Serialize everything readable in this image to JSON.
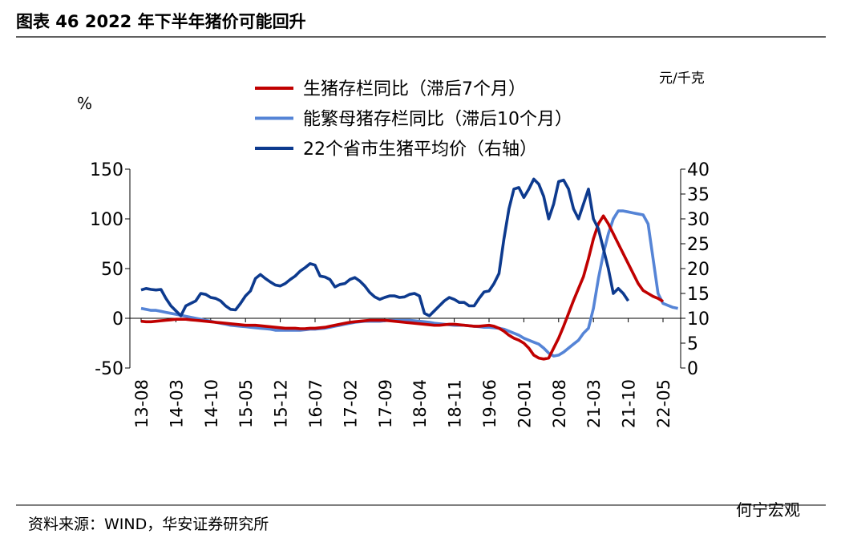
{
  "title": "图表 46 2022 年下半年猪价可能回升",
  "source": "资料来源：WIND，华安证券研究所",
  "watermark": "何宁宏观",
  "chart_data": {
    "type": "line",
    "y_label": "%",
    "y2_label": "元/千克",
    "ylim": [
      -50,
      150
    ],
    "yticks": [
      -50,
      0,
      50,
      100,
      150
    ],
    "y2lim": [
      0,
      40
    ],
    "y2ticks": [
      0,
      5,
      10,
      15,
      20,
      25,
      30,
      35,
      40
    ],
    "categories": [
      "13-08",
      null,
      null,
      null,
      null,
      null,
      null,
      "14-03",
      null,
      null,
      null,
      null,
      null,
      null,
      "14-10",
      null,
      null,
      null,
      null,
      null,
      null,
      "15-05",
      null,
      null,
      null,
      null,
      null,
      null,
      "15-12",
      null,
      null,
      null,
      null,
      null,
      null,
      "16-07",
      null,
      null,
      null,
      null,
      null,
      null,
      "17-02",
      null,
      null,
      null,
      null,
      null,
      null,
      "17-09",
      null,
      null,
      null,
      null,
      null,
      null,
      "18-04",
      null,
      null,
      null,
      null,
      null,
      null,
      "18-11",
      null,
      null,
      null,
      null,
      null,
      null,
      "19-06",
      null,
      null,
      null,
      null,
      null,
      null,
      "20-01",
      null,
      null,
      null,
      null,
      null,
      null,
      "20-08",
      null,
      null,
      null,
      null,
      null,
      null,
      "21-03",
      null,
      null,
      null,
      null,
      null,
      null,
      "21-10",
      null,
      null,
      null,
      null,
      null,
      null,
      "22-05",
      null,
      null,
      null
    ],
    "series": [
      {
        "name": "生猪存栏同比（滞后7个月）",
        "color": "#c00000",
        "axis": "y",
        "values": [
          -3,
          -3.5,
          -3.5,
          -3,
          -2.5,
          -2,
          -1.5,
          -1,
          -1,
          -1,
          -1.5,
          -2,
          -2.5,
          -3,
          -3.5,
          -4,
          -4.5,
          -5,
          -5.5,
          -6,
          -6.5,
          -7,
          -7,
          -7,
          -7.5,
          -8,
          -8.5,
          -9,
          -9.5,
          -10,
          -10,
          -10,
          -10.5,
          -10.5,
          -10,
          -10,
          -9.5,
          -9,
          -8,
          -7,
          -6,
          -5,
          -4,
          -3.5,
          -3,
          -2.5,
          -2,
          -2,
          -2,
          -2,
          -2.5,
          -3,
          -3.5,
          -4,
          -4.5,
          -5,
          -5.5,
          -6,
          -6.5,
          -7,
          -7,
          -6.5,
          -6,
          -6,
          -6.5,
          -7,
          -7.5,
          -8,
          -8,
          -7.5,
          -7,
          -8,
          -10,
          -13,
          -17,
          -20,
          -22,
          -25,
          -30,
          -37,
          -40,
          -41,
          -40,
          -30,
          -20,
          -8,
          5,
          18,
          30,
          42,
          60,
          80,
          95,
          103,
          95,
          85,
          75,
          65,
          55,
          45,
          35,
          28,
          25,
          22,
          20,
          17,
          null,
          null,
          null
        ]
      },
      {
        "name": "能繁母猪存栏同比（滞后10个月）",
        "color": "#5584d6",
        "axis": "y",
        "values": [
          10,
          9,
          8,
          8,
          7,
          6,
          5,
          4,
          3,
          2,
          1,
          0,
          -1,
          -2,
          -3,
          -4,
          -5,
          -6,
          -7,
          -7.5,
          -8,
          -8.5,
          -9,
          -9.5,
          -10,
          -10.5,
          -11,
          -12,
          -12,
          -12,
          -12,
          -12,
          -12,
          -11.5,
          -11,
          -11,
          -10.5,
          -10,
          -9,
          -8,
          -7,
          -6,
          -5,
          -4,
          -3.5,
          -3,
          -3,
          -3,
          -3,
          -2.5,
          -2,
          -2,
          -2,
          -2,
          -2,
          -2.5,
          -3,
          -3.5,
          -4,
          -5,
          -5.5,
          -6,
          -6.5,
          -7,
          -7,
          -7,
          -7.5,
          -8,
          -8.5,
          -9,
          -9,
          -9.5,
          -10,
          -11,
          -13,
          -15,
          -17,
          -20,
          -22,
          -24,
          -26,
          -30,
          -35,
          -38,
          -37,
          -34,
          -30,
          -26,
          -22,
          -15,
          -10,
          10,
          40,
          65,
          85,
          100,
          108,
          108,
          107,
          106,
          105,
          104,
          95,
          60,
          25,
          15,
          13,
          11,
          10
        ]
      },
      {
        "name": "22个省市生猪平均价（右轴）",
        "color": "#0d3a8e",
        "axis": "y2",
        "values": [
          15.7,
          16,
          15.8,
          15.7,
          15.8,
          14,
          12.5,
          11.5,
          10.5,
          12.5,
          13,
          13.5,
          15,
          14.8,
          14.2,
          14,
          13.5,
          12.5,
          11.8,
          11.7,
          13,
          14.5,
          15.5,
          18,
          18.8,
          18,
          17.3,
          16.7,
          16.5,
          17,
          17.8,
          18.5,
          19.5,
          20.2,
          21,
          20.7,
          18.5,
          18.3,
          17.8,
          16.3,
          16.8,
          17,
          17.8,
          18.2,
          17.5,
          16.5,
          15.2,
          14.3,
          13.8,
          14.2,
          14.5,
          14.5,
          14.2,
          14.3,
          14.8,
          15,
          14.5,
          11,
          10.5,
          11.5,
          12.5,
          13.5,
          14.2,
          13.8,
          13.2,
          13.2,
          12.5,
          12.5,
          14,
          15.3,
          15.5,
          17,
          19,
          26,
          32,
          36,
          36.3,
          34.3,
          36,
          38,
          37,
          34.5,
          30,
          33,
          37.5,
          37.8,
          36,
          32,
          30,
          33,
          36,
          30,
          28,
          24,
          20,
          15,
          16,
          15,
          13.5,
          null,
          null,
          null,
          null,
          null,
          null,
          null,
          null,
          null,
          null
        ]
      }
    ]
  }
}
